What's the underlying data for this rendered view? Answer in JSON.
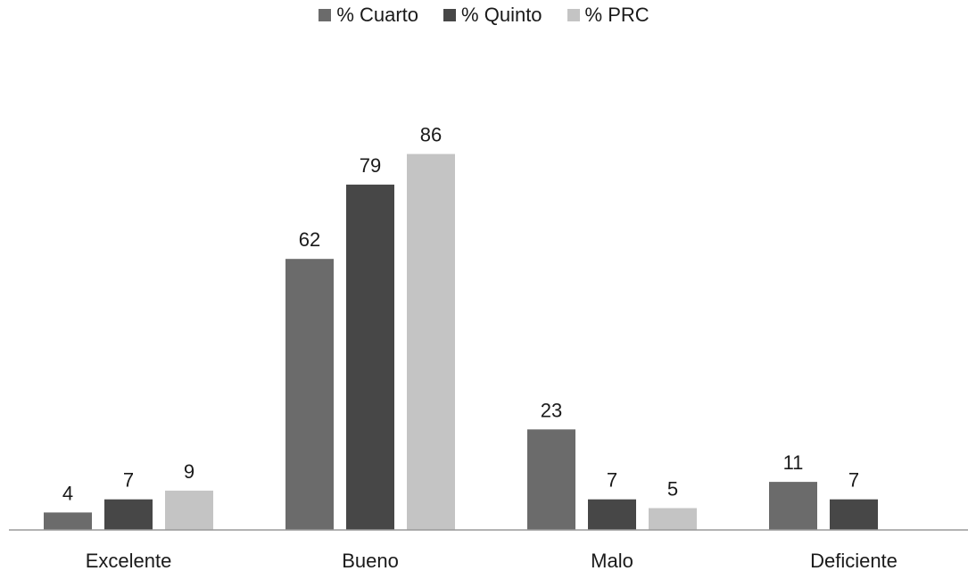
{
  "chart_data": {
    "type": "bar",
    "categories": [
      "Excelente",
      "Bueno",
      "Malo",
      "Deficiente"
    ],
    "series": [
      {
        "name": "% Cuarto",
        "values": [
          4,
          62,
          23,
          11
        ],
        "color": "#6b6b6b"
      },
      {
        "name": "% Quinto",
        "values": [
          7,
          79,
          7,
          7
        ],
        "color": "#474747"
      },
      {
        "name": "% PRC",
        "values": [
          9,
          86,
          5,
          null
        ],
        "color": "#c4c4c4"
      }
    ],
    "title": "",
    "xlabel": "",
    "ylabel": "",
    "ylim": [
      0,
      100
    ],
    "grid": false,
    "legend": "top-center"
  }
}
